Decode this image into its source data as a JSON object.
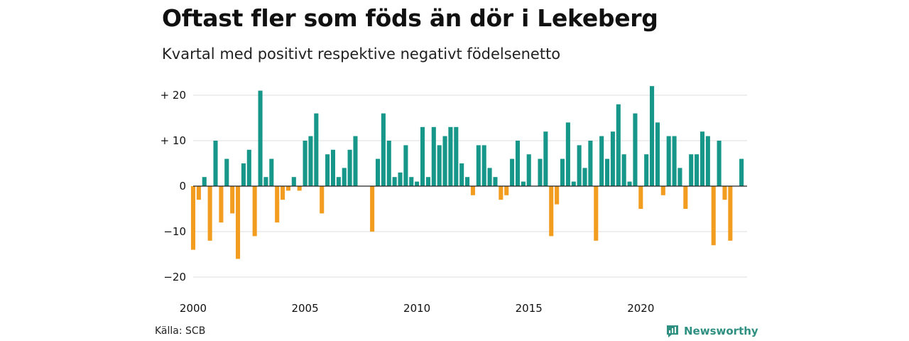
{
  "title": "Oftast fler som föds än dör i Lekeberg",
  "subtitle": "Kvartal med positivt respektive negativt födelsenetto",
  "source": "Källa: SCB",
  "brand": {
    "name": "Newsworthy",
    "logo_icon": "bar-chart-badge-icon",
    "color": "#2f8f80"
  },
  "chart_data": {
    "type": "bar",
    "x_start": 2000.0,
    "x_step": 0.25,
    "xlim": [
      2000.0,
      2024.75
    ],
    "ylim": [
      -20,
      22
    ],
    "x_ticks": [
      2000,
      2005,
      2010,
      2015,
      2020
    ],
    "y_ticks": [
      {
        "value": 20,
        "label": "+ 20"
      },
      {
        "value": 10,
        "label": "+ 10"
      },
      {
        "value": 0,
        "label": "0"
      },
      {
        "value": -10,
        "label": "−10"
      },
      {
        "value": -20,
        "label": "−20"
      }
    ],
    "values": [
      -14,
      -3,
      2,
      -12,
      10,
      -8,
      6,
      -6,
      -16,
      5,
      8,
      -11,
      21,
      2,
      6,
      -8,
      -3,
      -1,
      2,
      -1,
      10,
      11,
      16,
      -6,
      7,
      8,
      2,
      4,
      8,
      11,
      0,
      0,
      -10,
      6,
      16,
      10,
      2,
      3,
      9,
      2,
      1,
      13,
      2,
      13,
      9,
      11,
      13,
      13,
      5,
      2,
      -2,
      9,
      9,
      4,
      2,
      -3,
      -2,
      6,
      10,
      1,
      7,
      0,
      6,
      12,
      -11,
      -4,
      6,
      14,
      1,
      9,
      4,
      10,
      -12,
      11,
      6,
      12,
      18,
      7,
      1,
      16,
      -5,
      7,
      22,
      14,
      -2,
      11,
      11,
      4,
      -5,
      7,
      7,
      12,
      11,
      -13,
      10,
      -3,
      -12,
      0,
      6
    ],
    "colors": {
      "positive": "#16978a",
      "negative": "#f29d1f"
    },
    "grid": true,
    "legend": "none"
  }
}
